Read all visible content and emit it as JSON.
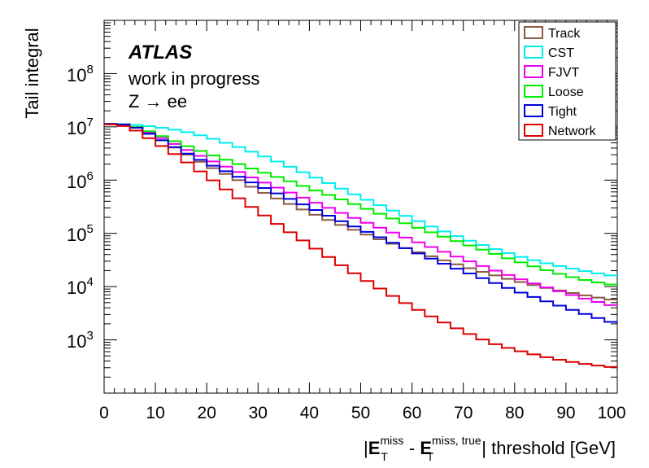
{
  "chart_data": {
    "type": "line",
    "style": "step",
    "ylabel": "Tail integral",
    "xlabel": {
      "prefix": "|",
      "bold1": "E",
      "sub1": "T",
      "sup1": "miss",
      "minus": " - ",
      "bold2": "E",
      "sub2": "T",
      "sup2": "miss, true",
      "suffix": "| threshold [GeV]"
    },
    "annotations": {
      "experiment": "ATLAS",
      "status": "work in progress",
      "process": "Z → ee"
    },
    "x_axis": {
      "range": [
        0,
        100
      ],
      "tick_labels": [
        "0",
        "10",
        "20",
        "30",
        "40",
        "50",
        "60",
        "70",
        "80",
        "90",
        "100"
      ]
    },
    "y_axis": {
      "scale": "log",
      "range": [
        100,
        1000000000
      ],
      "tick_labels": [
        {
          "base": "10",
          "exp": "3"
        },
        {
          "base": "10",
          "exp": "4"
        },
        {
          "base": "10",
          "exp": "5"
        },
        {
          "base": "10",
          "exp": "6"
        },
        {
          "base": "10",
          "exp": "7"
        },
        {
          "base": "10",
          "exp": "8"
        }
      ]
    },
    "grid": false,
    "legend_position": "top-right",
    "bin_width": 2.5,
    "series": [
      {
        "name": "Track",
        "color": "#8b5a46",
        "anchors": [
          [
            0,
            11500000.0
          ],
          [
            5,
            11000000.0
          ],
          [
            10,
            6500000.0
          ],
          [
            15,
            3500000.0
          ],
          [
            20,
            1900000.0
          ],
          [
            25,
            1150000.0
          ],
          [
            30,
            650000.0
          ],
          [
            35,
            400000.0
          ],
          [
            40,
            250000.0
          ],
          [
            45,
            160000.0
          ],
          [
            50,
            105000.0
          ],
          [
            55,
            70000.0
          ],
          [
            60,
            48000.0
          ],
          [
            65,
            34000.0
          ],
          [
            70,
            24000.0
          ],
          [
            75,
            17500.0
          ],
          [
            80,
            13000.0
          ],
          [
            85,
            10000.0
          ],
          [
            90,
            8000.0
          ],
          [
            95,
            6500.0
          ],
          [
            100,
            5500.0
          ]
        ]
      },
      {
        "name": "CST",
        "color": "#00eeee",
        "anchors": [
          [
            0,
            11500000.0
          ],
          [
            5,
            11200000.0
          ],
          [
            10,
            10000000.0
          ],
          [
            15,
            8500000.0
          ],
          [
            20,
            6500000.0
          ],
          [
            25,
            4600000.0
          ],
          [
            30,
            3100000.0
          ],
          [
            35,
            2000000.0
          ],
          [
            40,
            1250000.0
          ],
          [
            45,
            780000.0
          ],
          [
            50,
            480000.0
          ],
          [
            55,
            300000.0
          ],
          [
            60,
            190000.0
          ],
          [
            65,
            120000.0
          ],
          [
            70,
            80000.0
          ],
          [
            75,
            55000.0
          ],
          [
            80,
            39000.0
          ],
          [
            85,
            29000.0
          ],
          [
            90,
            23000.0
          ],
          [
            95,
            18500.0
          ],
          [
            100,
            15500.0
          ]
        ]
      },
      {
        "name": "FJVT",
        "color": "#ee00ee",
        "anchors": [
          [
            0,
            11500000.0
          ],
          [
            5,
            11000000.0
          ],
          [
            10,
            7000000.0
          ],
          [
            15,
            4200000.0
          ],
          [
            20,
            2500000.0
          ],
          [
            25,
            1600000.0
          ],
          [
            30,
            1000000.0
          ],
          [
            35,
            650000.0
          ],
          [
            40,
            420000.0
          ],
          [
            45,
            270000.0
          ],
          [
            50,
            175000.0
          ],
          [
            55,
            115000.0
          ],
          [
            60,
            75000.0
          ],
          [
            65,
            50000.0
          ],
          [
            70,
            33000.0
          ],
          [
            75,
            22000.0
          ],
          [
            80,
            15000.0
          ],
          [
            85,
            10500.0
          ],
          [
            90,
            7500.0
          ],
          [
            95,
            5500.0
          ],
          [
            100,
            4200.0
          ]
        ]
      },
      {
        "name": "Loose",
        "color": "#00ee00",
        "anchors": [
          [
            0,
            11500000.0
          ],
          [
            5,
            11000000.0
          ],
          [
            10,
            7500000.0
          ],
          [
            15,
            4800000.0
          ],
          [
            20,
            3200000.0
          ],
          [
            25,
            2200000.0
          ],
          [
            30,
            1500000.0
          ],
          [
            35,
            1050000.0
          ],
          [
            40,
            700000.0
          ],
          [
            45,
            480000.0
          ],
          [
            50,
            320000.0
          ],
          [
            55,
            210000.0
          ],
          [
            60,
            140000.0
          ],
          [
            65,
            95000.0
          ],
          [
            70,
            65000.0
          ],
          [
            75,
            45000.0
          ],
          [
            80,
            31000.0
          ],
          [
            85,
            22000.0
          ],
          [
            90,
            16000.0
          ],
          [
            95,
            12500.0
          ],
          [
            100,
            10500.0
          ]
        ]
      },
      {
        "name": "Tight",
        "color": "#0000dd",
        "anchors": [
          [
            0,
            11500000.0
          ],
          [
            5,
            11000000.0
          ],
          [
            10,
            6500000.0
          ],
          [
            15,
            3600000.0
          ],
          [
            20,
            2100000.0
          ],
          [
            25,
            1300000.0
          ],
          [
            30,
            800000.0
          ],
          [
            35,
            500000.0
          ],
          [
            40,
            310000.0
          ],
          [
            45,
            190000.0
          ],
          [
            50,
            120000.0
          ],
          [
            55,
            75000.0
          ],
          [
            60,
            47000.0
          ],
          [
            65,
            30000.0
          ],
          [
            70,
            19500.0
          ],
          [
            75,
            13000.0
          ],
          [
            80,
            8500.0
          ],
          [
            85,
            5800.0
          ],
          [
            90,
            4000.0
          ],
          [
            95,
            2800.0
          ],
          [
            100,
            2000.0
          ]
        ]
      },
      {
        "name": "Network",
        "color": "#dd0000",
        "anchors": [
          [
            0,
            11500000.0
          ],
          [
            5,
            10000000.0
          ],
          [
            10,
            5200000.0
          ],
          [
            15,
            2600000.0
          ],
          [
            20,
            1200000.0
          ],
          [
            25,
            550000.0
          ],
          [
            30,
            260000.0
          ],
          [
            35,
            125000.0
          ],
          [
            40,
            62000.0
          ],
          [
            45,
            30000.0
          ],
          [
            50,
            15000.0
          ],
          [
            55,
            7800.0
          ],
          [
            60,
            4200.0
          ],
          [
            65,
            2400.0
          ],
          [
            70,
            1450.0
          ],
          [
            75,
            900.0
          ],
          [
            80,
            650.0
          ],
          [
            85,
            500.0
          ],
          [
            90,
            400.0
          ],
          [
            95,
            340.0
          ],
          [
            100,
            300.0
          ]
        ]
      }
    ]
  }
}
